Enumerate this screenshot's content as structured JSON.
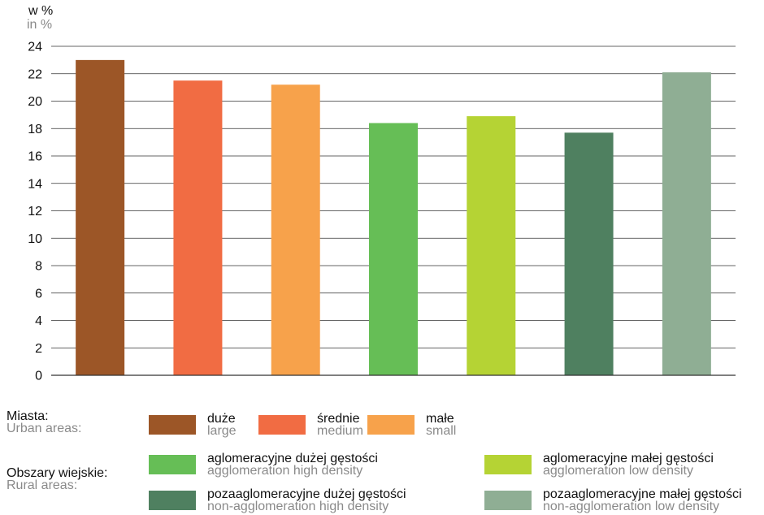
{
  "yaxis": {
    "label_pl": "w %",
    "label_en": "in %"
  },
  "chart_data": {
    "type": "bar",
    "categories": [
      "duże / large",
      "średnie / medium",
      "małe / small",
      "aglomeracyjne dużej gęstości / agglomeration high density",
      "aglomeracyjne małej gęstości / agglomeration low density",
      "pozaaglomeracyjne dużej gęstości / non-agglomeration high density",
      "pozaaglomeracyjne małej gęstości / non-agglomeration low density"
    ],
    "values": [
      23.0,
      21.5,
      21.2,
      18.4,
      18.9,
      17.7,
      22.1
    ],
    "colors": [
      "#9c5627",
      "#f16c43",
      "#f7a24b",
      "#66be56",
      "#b5d334",
      "#4f8060",
      "#8fae94"
    ],
    "ylim": [
      0,
      24
    ],
    "yticks": [
      "0",
      "2",
      "4",
      "6",
      "8",
      "10",
      "12",
      "14",
      "16",
      "18",
      "20",
      "22",
      "24"
    ],
    "grid": true,
    "title": "",
    "xlabel": "",
    "ylabel": "w % / in %"
  },
  "legend": {
    "urban": {
      "label_pl": "Miasta:",
      "label_en": "Urban areas:"
    },
    "rural": {
      "label_pl": "Obszary wiejskie:",
      "label_en": "Rural areas:"
    },
    "items": [
      {
        "pl": "duże",
        "en": "large",
        "color": "#9c5627"
      },
      {
        "pl": "średnie",
        "en": "medium",
        "color": "#f16c43"
      },
      {
        "pl": "małe",
        "en": "small",
        "color": "#f7a24b"
      },
      {
        "pl": "aglomeracyjne dużej gęstości",
        "en": "agglomeration high density",
        "color": "#66be56"
      },
      {
        "pl": "aglomeracyjne małej gęstości",
        "en": "agglomeration low density",
        "color": "#b5d334"
      },
      {
        "pl": "pozaaglomeracyjne dużej gęstości",
        "en": "non-agglomeration high density",
        "color": "#4f8060"
      },
      {
        "pl": "pozaaglomeracyjne małej gęstości",
        "en": "non-agglomeration low density",
        "color": "#8fae94"
      }
    ]
  }
}
